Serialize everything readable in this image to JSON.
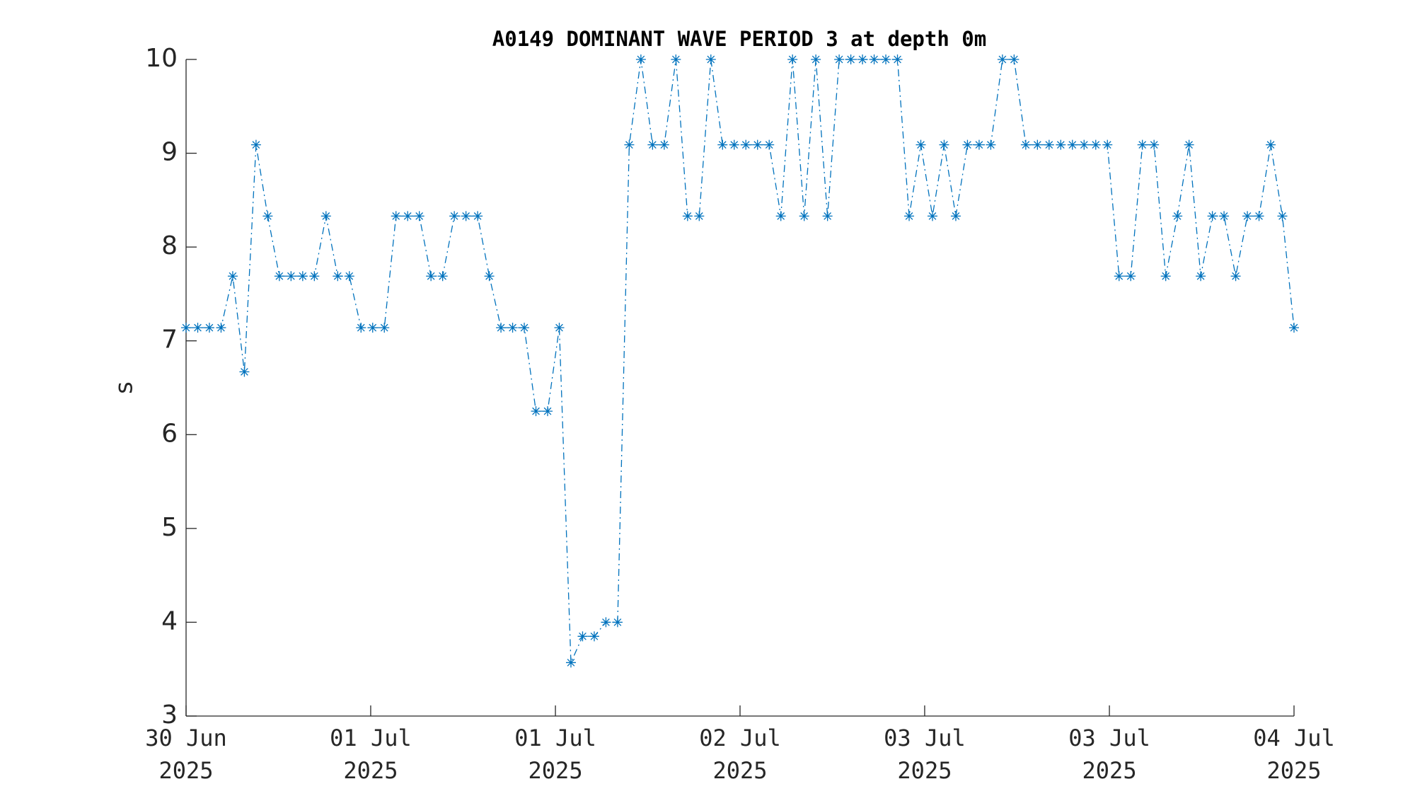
{
  "chart_data": {
    "type": "line",
    "title": "A0149 DOMINANT WAVE PERIOD 3 at depth 0m",
    "ylabel": "s",
    "x": [
      0,
      1,
      2,
      3,
      4,
      5,
      6,
      7,
      8,
      9,
      10,
      11,
      12,
      13,
      14,
      15,
      16,
      17,
      18,
      19,
      20,
      21,
      22,
      23,
      24,
      25,
      26,
      27,
      28,
      29,
      30,
      31,
      32,
      33,
      34,
      35,
      36,
      37,
      38,
      39,
      40,
      41,
      42,
      43,
      44,
      45,
      46,
      47,
      48,
      49,
      50,
      51,
      52,
      53,
      54,
      55,
      56,
      57,
      58,
      59,
      60,
      61,
      62,
      63,
      64,
      65,
      66,
      67,
      68,
      69,
      70,
      71,
      72,
      73,
      74,
      75,
      76,
      77,
      78,
      79,
      80,
      81,
      82,
      83,
      84,
      85,
      86,
      87,
      88,
      89,
      90,
      91,
      92,
      93,
      94,
      95
    ],
    "values": [
      7.14,
      7.14,
      7.14,
      7.14,
      7.69,
      6.67,
      9.09,
      8.33,
      7.69,
      7.69,
      7.69,
      7.69,
      8.33,
      7.69,
      7.69,
      7.14,
      7.14,
      7.14,
      8.33,
      8.33,
      8.33,
      7.69,
      7.69,
      8.33,
      8.33,
      8.33,
      7.69,
      7.14,
      7.14,
      7.14,
      6.25,
      6.25,
      7.14,
      3.57,
      3.85,
      3.85,
      4.0,
      4.0,
      9.09,
      10,
      9.09,
      9.09,
      10,
      8.33,
      8.33,
      10,
      9.09,
      9.09,
      9.09,
      9.09,
      9.09,
      8.33,
      10,
      8.33,
      10,
      8.33,
      10,
      10,
      10,
      10,
      10,
      10,
      8.33,
      9.09,
      8.33,
      9.09,
      8.33,
      9.09,
      9.09,
      9.09,
      10,
      10,
      9.09,
      9.09,
      9.09,
      9.09,
      9.09,
      9.09,
      9.09,
      9.09,
      7.69,
      7.69,
      9.09,
      9.09,
      7.69,
      8.33,
      9.09,
      7.69,
      8.33,
      8.33,
      7.69,
      8.33,
      8.33,
      9.09,
      8.33,
      7.14
    ],
    "color": "#0072bd",
    "line_style": "dashdot",
    "marker": "asterisk",
    "xlim": [
      0,
      95
    ],
    "xticks": [
      {
        "value": 0,
        "label": "30 Jun 2025"
      },
      {
        "value": 15.83,
        "label": "01 Jul 2025"
      },
      {
        "value": 31.67,
        "label": "01 Jul 2025"
      },
      {
        "value": 47.5,
        "label": "02 Jul 2025"
      },
      {
        "value": 63.33,
        "label": "03 Jul 2025"
      },
      {
        "value": 79.17,
        "label": "03 Jul 2025"
      },
      {
        "value": 95,
        "label": "04 Jul 2025"
      }
    ],
    "ylim": [
      3,
      10
    ],
    "yticks": [
      3,
      4,
      5,
      6,
      7,
      8,
      9,
      10
    ]
  }
}
